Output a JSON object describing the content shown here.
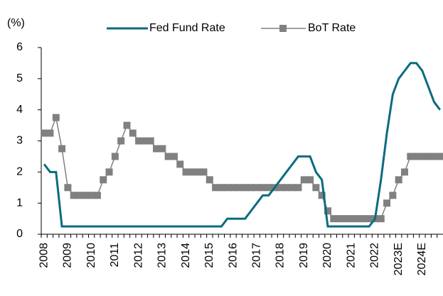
{
  "chart_data": {
    "type": "line",
    "y_label": "(%)",
    "categories": [
      "2008",
      null,
      null,
      null,
      "2009",
      null,
      null,
      null,
      "2010",
      null,
      null,
      null,
      "2011",
      null,
      null,
      null,
      "2012",
      null,
      null,
      null,
      "2013",
      null,
      null,
      null,
      "2014",
      null,
      null,
      null,
      "2015",
      null,
      null,
      null,
      "2016",
      null,
      null,
      null,
      "2017",
      null,
      null,
      null,
      "2018",
      null,
      null,
      null,
      "2019",
      null,
      null,
      null,
      "2020",
      null,
      null,
      null,
      "2021",
      null,
      null,
      null,
      "2022",
      null,
      null,
      null,
      "2023E",
      null,
      null,
      null,
      "2024E",
      null,
      null,
      null
    ],
    "series": [
      {
        "name": "Fed Fund Rate",
        "color": "#0a6b80",
        "values": [
          2.25,
          2.0,
          2.0,
          0.25,
          0.25,
          0.25,
          0.25,
          0.25,
          0.25,
          0.25,
          0.25,
          0.25,
          0.25,
          0.25,
          0.25,
          0.25,
          0.25,
          0.25,
          0.25,
          0.25,
          0.25,
          0.25,
          0.25,
          0.25,
          0.25,
          0.25,
          0.25,
          0.25,
          0.25,
          0.25,
          0.25,
          0.5,
          0.5,
          0.5,
          0.5,
          0.75,
          1.0,
          1.25,
          1.25,
          1.5,
          1.75,
          2.0,
          2.25,
          2.5,
          2.5,
          2.5,
          2.0,
          1.75,
          0.25,
          0.25,
          0.25,
          0.25,
          0.25,
          0.25,
          0.25,
          0.25,
          0.5,
          1.75,
          3.25,
          4.5,
          5.0,
          5.25,
          5.5,
          5.5,
          5.25,
          4.75,
          4.25,
          4.0
        ]
      },
      {
        "name": "BoT Rate",
        "color": "#808080",
        "values": [
          3.25,
          3.25,
          3.75,
          2.75,
          1.5,
          1.25,
          1.25,
          1.25,
          1.25,
          1.25,
          1.75,
          2.0,
          2.5,
          3.0,
          3.5,
          3.25,
          3.0,
          3.0,
          3.0,
          2.75,
          2.75,
          2.5,
          2.5,
          2.25,
          2.0,
          2.0,
          2.0,
          2.0,
          1.75,
          1.5,
          1.5,
          1.5,
          1.5,
          1.5,
          1.5,
          1.5,
          1.5,
          1.5,
          1.5,
          1.5,
          1.5,
          1.5,
          1.5,
          1.5,
          1.75,
          1.75,
          1.5,
          1.25,
          0.75,
          0.5,
          0.5,
          0.5,
          0.5,
          0.5,
          0.5,
          0.5,
          0.5,
          0.5,
          1.0,
          1.25,
          1.75,
          2.0,
          2.5,
          2.5,
          2.5,
          2.5,
          2.5,
          2.5
        ]
      }
    ],
    "ylim": [
      0,
      6
    ],
    "yticks": [
      0,
      1,
      2,
      3,
      4,
      5,
      6
    ],
    "legend": "top"
  }
}
